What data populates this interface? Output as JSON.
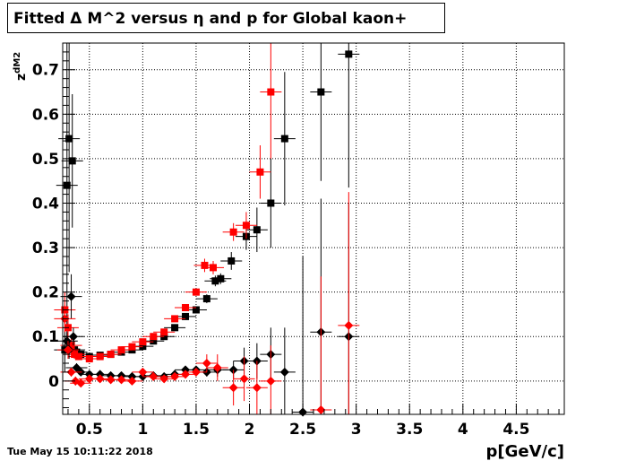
{
  "header": {
    "title": "Fitted Δ M^2 versus η and p for Global kaon+"
  },
  "footer": {
    "timestamp": "Tue May 15 10:11:22 2018"
  },
  "chart_data": {
    "type": "scatter",
    "title": "Fitted Δ M^2 versus η and p for Global kaon+",
    "xlabel": "p[GeV/c]",
    "ylabel": "z_{dM2}",
    "xlim": [
      0.25,
      4.95
    ],
    "ylim": [
      -0.075,
      0.76
    ],
    "x_ticks": [
      0.5,
      1,
      1.5,
      2,
      2.5,
      3,
      3.5,
      4,
      4.5
    ],
    "x_tick_labels": [
      "0.5",
      "1",
      "1.5",
      "2",
      "2.5",
      "3",
      "3.5",
      "4",
      "4.5"
    ],
    "y_ticks": [
      0,
      0.1,
      0.2,
      0.3,
      0.4,
      0.5,
      0.6,
      0.7
    ],
    "y_tick_labels": [
      "0",
      "0.1",
      "0.2",
      "0.3",
      "0.4",
      "0.5",
      "0.6",
      "0.7"
    ],
    "grid": true,
    "legend": "none",
    "series": [
      {
        "marker": "square",
        "color": "#000000",
        "points": [
          [
            0.27,
            0.07,
            0.05
          ],
          [
            0.29,
            0.44,
            0.35
          ],
          [
            0.31,
            0.545,
            0.3
          ],
          [
            0.34,
            0.495,
            0.15
          ],
          [
            0.36,
            0.07,
            0.02
          ],
          [
            0.38,
            0.065,
            0.01
          ],
          [
            0.42,
            0.06,
            0.005
          ],
          [
            0.5,
            0.055,
            0.004
          ],
          [
            0.6,
            0.058,
            0.003
          ],
          [
            0.7,
            0.06,
            0.003
          ],
          [
            0.8,
            0.065,
            0.003
          ],
          [
            0.9,
            0.07,
            0.003
          ],
          [
            1.0,
            0.078,
            0.004
          ],
          [
            1.1,
            0.09,
            0.005
          ],
          [
            1.2,
            0.1,
            0.005
          ],
          [
            1.3,
            0.12,
            0.006
          ],
          [
            1.4,
            0.145,
            0.007
          ],
          [
            1.5,
            0.16,
            0.008
          ],
          [
            1.6,
            0.185,
            0.01
          ],
          [
            1.68,
            0.225,
            0.012
          ],
          [
            1.73,
            0.23,
            0.012
          ],
          [
            1.83,
            0.27,
            0.02
          ],
          [
            1.97,
            0.325,
            0.03
          ],
          [
            2.07,
            0.34,
            0.05
          ],
          [
            2.2,
            0.4,
            0.1
          ],
          [
            2.33,
            0.545,
            0.15
          ],
          [
            2.67,
            0.65,
            0.2
          ],
          [
            2.93,
            0.735,
            0.3
          ]
        ]
      },
      {
        "marker": "square",
        "color": "#ff0000",
        "points": [
          [
            0.27,
            0.16,
            0.04
          ],
          [
            0.3,
            0.12,
            0.03
          ],
          [
            0.33,
            0.08,
            0.02
          ],
          [
            0.36,
            0.06,
            0.01
          ],
          [
            0.4,
            0.055,
            0.005
          ],
          [
            0.5,
            0.05,
            0.004
          ],
          [
            0.6,
            0.055,
            0.003
          ],
          [
            0.7,
            0.06,
            0.003
          ],
          [
            0.8,
            0.07,
            0.003
          ],
          [
            0.9,
            0.077,
            0.003
          ],
          [
            1.0,
            0.088,
            0.004
          ],
          [
            1.1,
            0.1,
            0.005
          ],
          [
            1.2,
            0.11,
            0.005
          ],
          [
            1.3,
            0.14,
            0.006
          ],
          [
            1.4,
            0.165,
            0.007
          ],
          [
            1.5,
            0.2,
            0.008
          ],
          [
            1.58,
            0.26,
            0.015
          ],
          [
            1.66,
            0.255,
            0.015
          ],
          [
            1.85,
            0.335,
            0.02
          ],
          [
            1.97,
            0.35,
            0.03
          ],
          [
            2.1,
            0.47,
            0.06
          ],
          [
            2.2,
            0.65,
            0.15
          ]
        ]
      },
      {
        "marker": "diamond",
        "color": "#000000",
        "points": [
          [
            0.29,
            0.09,
            0.02
          ],
          [
            0.31,
            0.07,
            0.02
          ],
          [
            0.33,
            0.19,
            0.05
          ],
          [
            0.35,
            0.1,
            0.02
          ],
          [
            0.38,
            0.03,
            0.01
          ],
          [
            0.42,
            0.02,
            0.005
          ],
          [
            0.5,
            0.015,
            0.004
          ],
          [
            0.6,
            0.015,
            0.003
          ],
          [
            0.7,
            0.012,
            0.003
          ],
          [
            0.8,
            0.012,
            0.003
          ],
          [
            0.9,
            0.01,
            0.003
          ],
          [
            1.0,
            0.01,
            0.003
          ],
          [
            1.1,
            0.012,
            0.004
          ],
          [
            1.2,
            0.01,
            0.004
          ],
          [
            1.3,
            0.015,
            0.005
          ],
          [
            1.4,
            0.025,
            0.006
          ],
          [
            1.5,
            0.025,
            0.007
          ],
          [
            1.6,
            0.02,
            0.01
          ],
          [
            1.7,
            0.025,
            0.015
          ],
          [
            1.85,
            0.025,
            0.02
          ],
          [
            1.95,
            0.045,
            0.03
          ],
          [
            2.07,
            0.045,
            0.04
          ],
          [
            2.2,
            0.06,
            0.06
          ],
          [
            2.33,
            0.02,
            0.1
          ],
          [
            2.5,
            -0.07,
            0.35
          ],
          [
            2.67,
            0.11,
            0.3
          ],
          [
            2.93,
            0.1,
            0.3
          ]
        ]
      },
      {
        "marker": "diamond",
        "color": "#ff0000",
        "points": [
          [
            0.27,
            0.14,
            0.03
          ],
          [
            0.3,
            0.07,
            0.02
          ],
          [
            0.33,
            0.02,
            0.01
          ],
          [
            0.37,
            0.0,
            0.01
          ],
          [
            0.42,
            -0.005,
            0.005
          ],
          [
            0.5,
            0.005,
            0.004
          ],
          [
            0.6,
            0.005,
            0.003
          ],
          [
            0.7,
            0.003,
            0.003
          ],
          [
            0.8,
            0.003,
            0.003
          ],
          [
            0.9,
            0.0,
            0.003
          ],
          [
            1.0,
            0.02,
            0.004
          ],
          [
            1.1,
            0.01,
            0.004
          ],
          [
            1.2,
            0.005,
            0.004
          ],
          [
            1.3,
            0.01,
            0.005
          ],
          [
            1.4,
            0.015,
            0.006
          ],
          [
            1.5,
            0.02,
            0.007
          ],
          [
            1.6,
            0.04,
            0.02
          ],
          [
            1.7,
            0.03,
            0.03
          ],
          [
            1.85,
            -0.015,
            0.04
          ],
          [
            1.95,
            0.005,
            0.05
          ],
          [
            2.07,
            -0.015,
            0.06
          ],
          [
            2.2,
            0.0,
            0.08
          ],
          [
            2.67,
            -0.065,
            0.3
          ],
          [
            2.93,
            0.125,
            0.3
          ]
        ]
      }
    ]
  }
}
